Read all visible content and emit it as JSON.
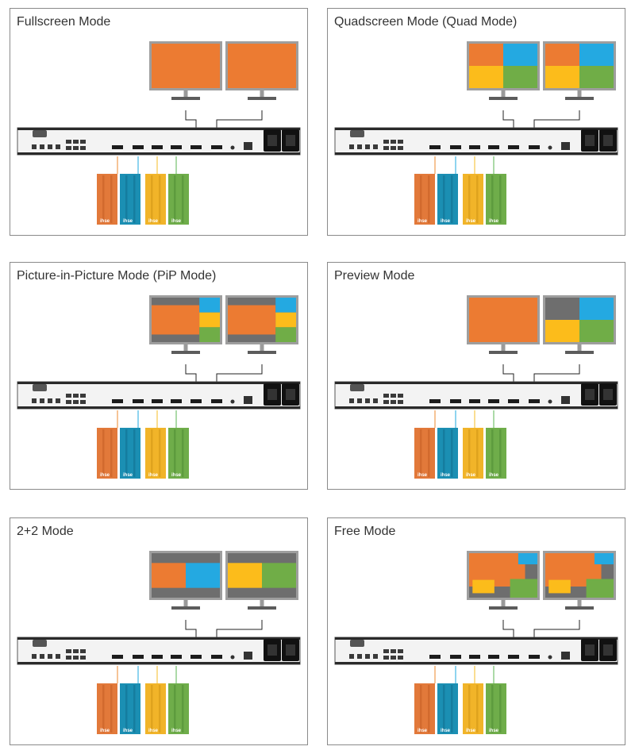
{
  "colors": {
    "orange": "#ec7b32",
    "blue": "#24a9e1",
    "yellow": "#fcbc1b",
    "green": "#70ad47",
    "gray": "#6e6e6e",
    "tower_orange": "#e2793a",
    "tower_blue": "#1b8fb3",
    "tower_yellow": "#f1b429",
    "tower_green": "#6fad4a",
    "cable_orange": "#f0a35e",
    "cable_blue": "#52bde6",
    "cable_yellow": "#f8cc58",
    "cable_green": "#7fc67a"
  },
  "brand": "ihse",
  "panels": [
    {
      "title": "Fullscreen Mode",
      "screens": [
        "full",
        "full"
      ]
    },
    {
      "title": "Quadscreen Mode (Quad Mode)",
      "screens": [
        "quad",
        "quad"
      ]
    },
    {
      "title": "Picture-in-Picture Mode (PiP Mode)",
      "screens": [
        "pip",
        "pip"
      ]
    },
    {
      "title": "Preview Mode",
      "screens": [
        "full",
        "preview"
      ]
    },
    {
      "title": "2+2 Mode",
      "screens": [
        "twoA",
        "twoB"
      ]
    },
    {
      "title": "Free Mode",
      "screens": [
        "free",
        "free"
      ]
    }
  ]
}
